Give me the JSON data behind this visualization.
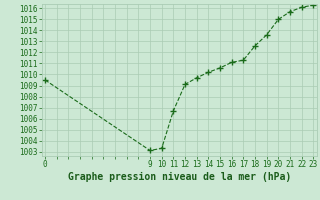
{
  "x": [
    0,
    9,
    10,
    11,
    12,
    13,
    14,
    15,
    16,
    17,
    18,
    19,
    20,
    21,
    22,
    23
  ],
  "y": [
    1009.5,
    1003.1,
    1003.3,
    1006.7,
    1009.1,
    1009.7,
    1010.2,
    1010.6,
    1011.1,
    1011.3,
    1012.6,
    1013.6,
    1015.0,
    1015.7,
    1016.1,
    1016.3
  ],
  "line_color": "#1a6b1a",
  "marker_color": "#1a6b1a",
  "bg_color": "#cce8d4",
  "grid_color": "#aaccb4",
  "title": "Graphe pression niveau de la mer (hPa)",
  "xlabel_ticklabels": [
    "0",
    "",
    "",
    "",
    "",
    "",
    "",
    "",
    "",
    "9",
    "10",
    "11",
    "12",
    "13",
    "14",
    "15",
    "16",
    "17",
    "18",
    "19",
    "20",
    "21",
    "22",
    "23"
  ],
  "ytick_min": 1003,
  "ytick_max": 1016,
  "ytick_step": 1,
  "title_color": "#1a5c1a",
  "title_fontsize": 7.0,
  "tick_fontsize": 5.5,
  "tick_color": "#1a6b1a",
  "xlim_min": 0,
  "xlim_max": 23
}
